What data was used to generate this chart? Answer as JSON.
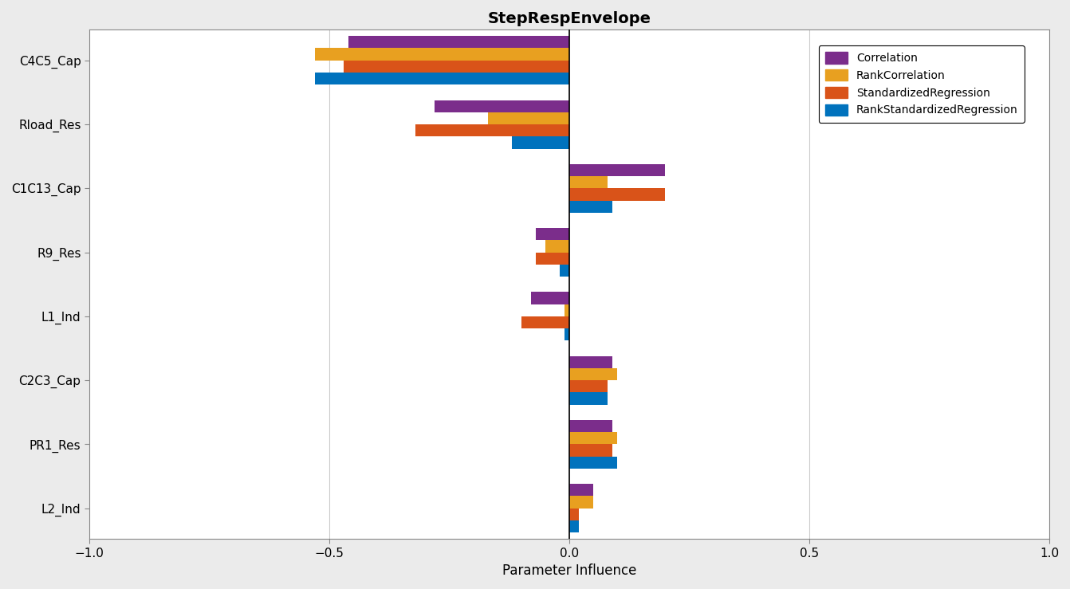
{
  "title": "StepRespEnvelope",
  "xlabel": "Parameter Influence",
  "categories": [
    "C4C5_Cap",
    "Rload_Res",
    "C1C13_Cap",
    "R9_Res",
    "L1_Ind",
    "C2C3_Cap",
    "PR1_Res",
    "L2_Ind"
  ],
  "series": {
    "Correlation": [
      -0.46,
      -0.28,
      0.2,
      -0.07,
      -0.08,
      0.09,
      0.09,
      0.05
    ],
    "RankCorrelation": [
      -0.53,
      -0.17,
      0.08,
      -0.05,
      -0.01,
      0.1,
      0.1,
      0.05
    ],
    "StandardizedRegression": [
      -0.47,
      -0.32,
      0.2,
      -0.07,
      -0.1,
      0.08,
      0.09,
      0.02
    ],
    "RankStandardizedRegression": [
      -0.53,
      -0.12,
      0.09,
      -0.02,
      -0.01,
      0.08,
      0.1,
      0.02
    ]
  },
  "colors": {
    "Correlation": "#7B2D8B",
    "RankCorrelation": "#E8A020",
    "StandardizedRegression": "#D95319",
    "RankStandardizedRegression": "#0072BD"
  },
  "xlim": [
    -1,
    1
  ],
  "xticks": [
    -1,
    -0.5,
    0,
    0.5,
    1
  ],
  "background_color": "#EBEBEB",
  "axes_background": "#FFFFFF"
}
